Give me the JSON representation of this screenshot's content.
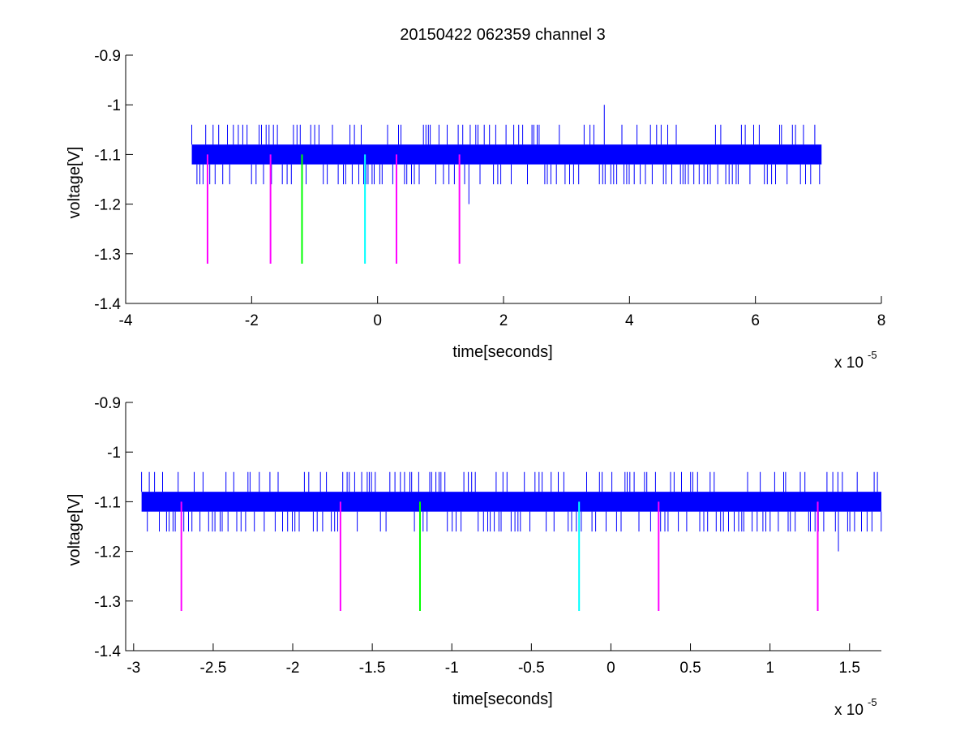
{
  "figure": {
    "title": "20150422 062359 channel 3"
  },
  "chart_data": [
    {
      "type": "line",
      "xlabel": "time[seconds]",
      "ylabel": "voltage[V]",
      "x_multiplier_label": {
        "base": "x 10",
        "exponent": "-5"
      },
      "xlim": [
        -4,
        8
      ],
      "ylim": [
        -1.4,
        -0.9
      ],
      "xticks": [
        -4,
        -2,
        0,
        2,
        4,
        6,
        8
      ],
      "xtick_labels": [
        "-4",
        "-2",
        "0",
        "2",
        "4",
        "6",
        "8"
      ],
      "yticks": [
        -0.9,
        -1.0,
        -1.1,
        -1.2,
        -1.3,
        -1.4
      ],
      "ytick_labels": [
        "-0.9",
        "-1",
        "-1.1",
        "-1.2",
        "-1.3",
        "-1.4"
      ],
      "grid": false,
      "series": [
        {
          "style": "noise-band",
          "color": "#0000ff",
          "x_range": [
            -2.95,
            7.05
          ],
          "band": [
            -1.12,
            -1.08
          ],
          "spike_high": -1.04,
          "spike_low": -1.16,
          "outliers": [
            {
              "x": 3.6,
              "y_from": -1.08,
              "y_to": -1.0
            },
            {
              "x": 1.45,
              "y_from": -1.12,
              "y_to": -1.2
            },
            {
              "x": -0.4,
              "y_from": -1.08,
              "y_to": -1.1
            }
          ]
        },
        {
          "style": "marker",
          "color": "#ff00ff",
          "x": -2.7,
          "y_top": -1.1,
          "y_bottom": -1.32
        },
        {
          "style": "marker",
          "color": "#ff00ff",
          "x": -1.7,
          "y_top": -1.1,
          "y_bottom": -1.32
        },
        {
          "style": "marker",
          "color": "#00ff00",
          "x": -1.2,
          "y_top": -1.1,
          "y_bottom": -1.32
        },
        {
          "style": "marker",
          "color": "#00ffff",
          "x": -0.2,
          "y_top": -1.1,
          "y_bottom": -1.32
        },
        {
          "style": "marker",
          "color": "#ff00ff",
          "x": 0.3,
          "y_top": -1.1,
          "y_bottom": -1.32
        },
        {
          "style": "marker",
          "color": "#ff00ff",
          "x": 1.3,
          "y_top": -1.1,
          "y_bottom": -1.32
        }
      ]
    },
    {
      "type": "line",
      "xlabel": "time[seconds]",
      "ylabel": "voltage[V]",
      "x_multiplier_label": {
        "base": "x 10",
        "exponent": "-5"
      },
      "xlim": [
        -3.05,
        1.7
      ],
      "ylim": [
        -1.4,
        -0.9
      ],
      "xticks": [
        -3,
        -2.5,
        -2,
        -1.5,
        -1,
        -0.5,
        0,
        0.5,
        1,
        1.5
      ],
      "xtick_labels": [
        "-3",
        "-2.5",
        "-2",
        "-1.5",
        "-1",
        "-0.5",
        "0",
        "0.5",
        "1",
        "1.5"
      ],
      "yticks": [
        -0.9,
        -1.0,
        -1.1,
        -1.2,
        -1.3,
        -1.4
      ],
      "ytick_labels": [
        "-0.9",
        "-1",
        "-1.1",
        "-1.2",
        "-1.3",
        "-1.4"
      ],
      "grid": false,
      "series": [
        {
          "style": "noise-band",
          "color": "#0000ff",
          "x_range": [
            -2.95,
            1.7
          ],
          "band": [
            -1.12,
            -1.08
          ],
          "spike_high": -1.04,
          "spike_low": -1.16,
          "outliers": [
            {
              "x": 1.43,
              "y_from": -1.12,
              "y_to": -1.2
            }
          ]
        },
        {
          "style": "marker",
          "color": "#ff00ff",
          "x": -2.7,
          "y_top": -1.1,
          "y_bottom": -1.32
        },
        {
          "style": "marker",
          "color": "#ff00ff",
          "x": -1.7,
          "y_top": -1.1,
          "y_bottom": -1.32
        },
        {
          "style": "marker",
          "color": "#00ff00",
          "x": -1.2,
          "y_top": -1.1,
          "y_bottom": -1.32
        },
        {
          "style": "marker",
          "color": "#00ffff",
          "x": -0.2,
          "y_top": -1.1,
          "y_bottom": -1.32
        },
        {
          "style": "marker",
          "color": "#ff00ff",
          "x": 0.3,
          "y_top": -1.1,
          "y_bottom": -1.32
        },
        {
          "style": "marker",
          "color": "#ff00ff",
          "x": 1.3,
          "y_top": -1.1,
          "y_bottom": -1.32
        }
      ]
    }
  ]
}
